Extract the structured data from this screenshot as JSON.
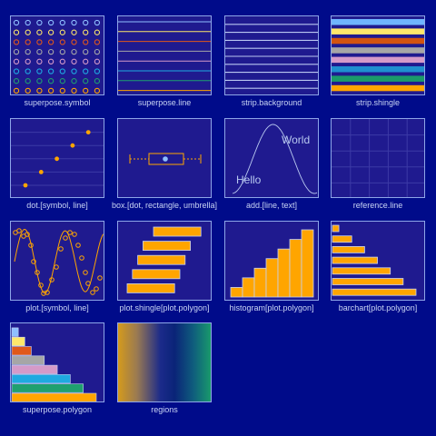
{
  "colors": {
    "background": "#000b8a",
    "panel_fill": "#1f1a8f",
    "panel_border": "#8ea6e8",
    "label_text": "#c9d4f4",
    "symbol": "#ffa500",
    "superpose": [
      "#8fbfff",
      "#ffe86a",
      "#e0591a",
      "#a6a6a6",
      "#d59ac8",
      "#1fa9e0",
      "#1fa06f",
      "#ffa500"
    ],
    "strip_shingle": [
      "#6fb5ff",
      "#ffe86a",
      "#d4540f",
      "#a6a6a6",
      "#d59ac8",
      "#1f8fcf",
      "#1a9a6a",
      "#ffa500"
    ]
  },
  "panels": [
    {
      "label": "superpose.symbol"
    },
    {
      "label": "superpose.line"
    },
    {
      "label": "strip.background"
    },
    {
      "label": "strip.shingle"
    },
    {
      "label": "dot.[symbol, line]"
    },
    {
      "label": "box.[dot, rectangle, umbrella]"
    },
    {
      "label": "add.[line, text]",
      "texts": [
        "World",
        "Hello"
      ]
    },
    {
      "label": "reference.line"
    },
    {
      "label": "plot.[symbol, line]"
    },
    {
      "label": "plot.shingle[plot.polygon]"
    },
    {
      "label": "histogram[plot.polygon]"
    },
    {
      "label": "barchart[plot.polygon]"
    },
    {
      "label": "superpose.polygon"
    },
    {
      "label": "regions"
    }
  ],
  "chart_data": [
    {
      "type": "scatter",
      "panel": "dot.[symbol, line]",
      "x": [
        1,
        2,
        3,
        4,
        5
      ],
      "y": [
        1,
        2,
        3,
        4,
        5
      ]
    },
    {
      "type": "bar",
      "panel": "plot.shingle[plot.polygon]",
      "intervals": [
        [
          1,
          10
        ],
        [
          2,
          11
        ],
        [
          3,
          12
        ],
        [
          4,
          13
        ],
        [
          6,
          15
        ]
      ]
    },
    {
      "type": "bar",
      "panel": "histogram[plot.polygon]",
      "values": [
        1,
        2,
        3,
        4,
        5,
        6,
        7
      ]
    },
    {
      "type": "bar",
      "panel": "barchart[plot.polygon]",
      "orientation": "horizontal",
      "values": [
        1,
        3,
        5,
        7,
        9,
        11,
        13
      ]
    },
    {
      "type": "bar",
      "panel": "superpose.polygon",
      "orientation": "horizontal",
      "values": [
        13,
        11,
        9,
        7,
        5,
        3,
        2,
        1
      ]
    }
  ]
}
